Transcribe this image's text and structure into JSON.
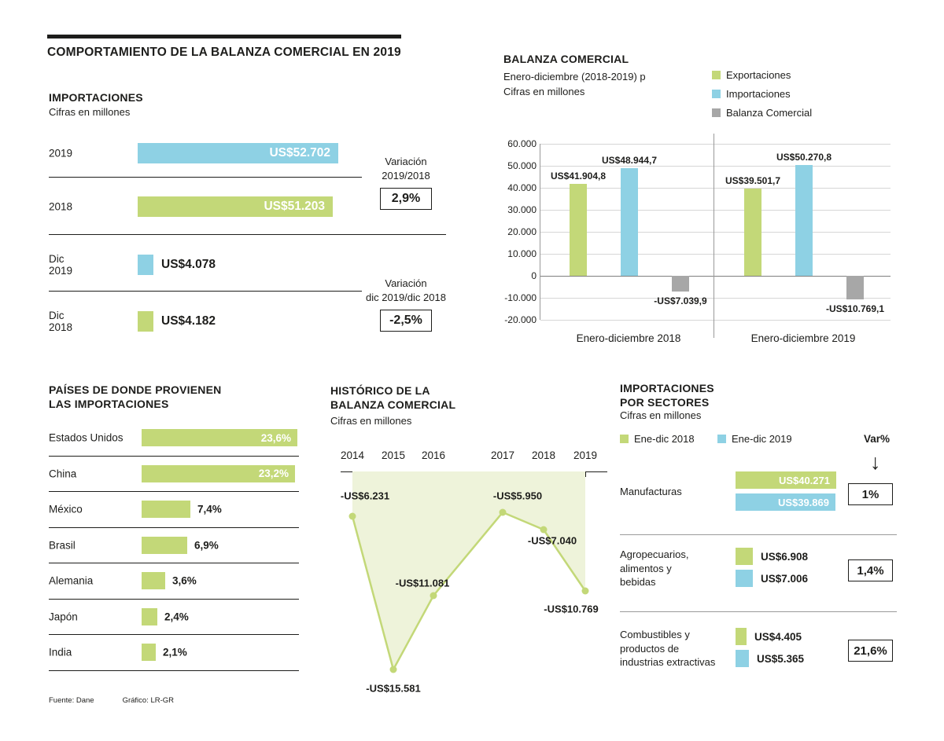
{
  "page": {
    "title": "COMPORTAMIENTO DE LA BALANZA COMERCIAL EN 2019",
    "footer": {
      "source": "Fuente: Dane",
      "credit": "Gráfico: LR-GR"
    }
  },
  "palette": {
    "green": "#c3d878",
    "blue": "#8ed1e4",
    "gray": "#a7a7a7",
    "area_fill": "#eef3da",
    "text": "#1d1d1b"
  },
  "chart_data": [
    {
      "id": "importaciones",
      "type": "bar",
      "orientation": "horizontal",
      "title": "IMPORTACIONES",
      "subtitle": "Cifras en millones",
      "categories": [
        "2019",
        "2018",
        "Dic 2019",
        "Dic 2018"
      ],
      "values": [
        52702,
        51203,
        4078,
        4182
      ],
      "labels": [
        "US$52.702",
        "US$51.203",
        "US$4.078",
        "US$4.182"
      ],
      "colors": [
        "blue",
        "green",
        "blue",
        "green"
      ],
      "variations": [
        {
          "label": "Variación\n2019/2018",
          "value": "2,9%"
        },
        {
          "label": "Variación\ndic 2019/dic 2018",
          "value": "-2,5%"
        }
      ]
    },
    {
      "id": "balanza_comercial",
      "type": "bar",
      "title": "BALANZA COMERCIAL",
      "subtitle": "Enero-diciembre (2018-2019) p",
      "units": "Cifras en millones",
      "categories": [
        "Enero-diciembre 2018",
        "Enero-diciembre 2019"
      ],
      "series": [
        {
          "name": "Exportaciones",
          "color": "green",
          "values": [
            41904.8,
            39501.7
          ],
          "labels": [
            "US$41.904,8",
            "US$39.501,7"
          ]
        },
        {
          "name": "Importaciones",
          "color": "blue",
          "values": [
            48944.7,
            50270.8
          ],
          "labels": [
            "US$48.944,7",
            "US$50.270,8"
          ]
        },
        {
          "name": "Balanza Comercial",
          "color": "gray",
          "values": [
            -7039.9,
            -10769.1
          ],
          "labels": [
            "-US$7.039,9",
            "-US$10.769,1"
          ]
        }
      ],
      "ylim": [
        -20000,
        60000
      ],
      "ytick_step": 10000,
      "ytick_labels": [
        "60.000",
        "50.000",
        "40.000",
        "30.000",
        "20.000",
        "10.000",
        "0",
        "-10.000",
        "-20.000"
      ],
      "grid": true,
      "legend_position": "top-right"
    },
    {
      "id": "paises_importaciones",
      "type": "bar",
      "orientation": "horizontal",
      "title": "PAÍSES DE DONDE PROVIENEN\nLAS IMPORTACIONES",
      "categories": [
        "Estados Unidos",
        "China",
        "México",
        "Brasil",
        "Alemania",
        "Japón",
        "India"
      ],
      "values": [
        23.6,
        23.2,
        7.4,
        6.9,
        3.6,
        2.4,
        2.1
      ],
      "labels": [
        "23,6%",
        "23,2%",
        "7,4%",
        "6,9%",
        "3,6%",
        "2,4%",
        "2,1%"
      ],
      "bar_color": "green"
    },
    {
      "id": "historico_balanza",
      "type": "line",
      "title": "HISTÓRICO DE LA\nBALANZA COMERCIAL",
      "subtitle": "Cifras en millones",
      "x": [
        "2014",
        "2015",
        "2016",
        "2017",
        "2018",
        "2019"
      ],
      "values": [
        -6231,
        -15581,
        -11081,
        -5950,
        -7040,
        -10769
      ],
      "labels": [
        "-US$6.231",
        "-US$15.581",
        "-US$11.081",
        "-US$5.950",
        "-US$7.040",
        "-US$10.769"
      ],
      "line_color": "green",
      "area": true
    },
    {
      "id": "importaciones_sectores",
      "type": "bar",
      "orientation": "horizontal",
      "title": "IMPORTACIONES\nPOR SECTORES",
      "subtitle": "Cifras en millones",
      "categories": [
        "Manufacturas",
        "Agropecuarios,\nalimentos y\nbebidas",
        "Combustibles y\nproductos de\nindustrias extractivas"
      ],
      "series": [
        {
          "name": "Ene-dic 2018",
          "color": "green",
          "values": [
            40271,
            6908,
            4405
          ],
          "labels": [
            "US$40.271",
            "US$6.908",
            "US$4.405"
          ]
        },
        {
          "name": "Ene-dic 2019",
          "color": "blue",
          "values": [
            39869,
            7006,
            5365
          ],
          "labels": [
            "US$39.869",
            "US$7.006",
            "US$5.365"
          ]
        }
      ],
      "var_header": "Var%",
      "var_arrow": "↓",
      "variations": [
        "1%",
        "1,4%",
        "21,6%"
      ]
    }
  ]
}
